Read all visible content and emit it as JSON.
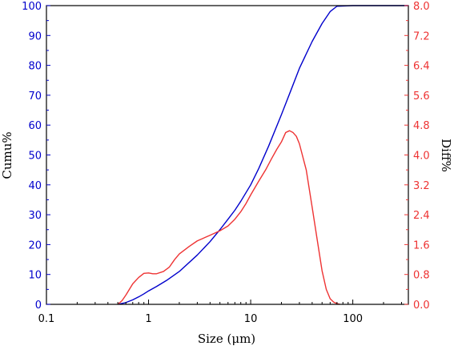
{
  "chart_data": {
    "type": "line",
    "title": "",
    "xlabel": "Size (μm)",
    "ylabel_left": "Cumu%",
    "ylabel_right": "Diff%",
    "x_scale": "log",
    "xlim": [
      0.1,
      350
    ],
    "ylim_left": [
      0,
      100
    ],
    "ylim_right": [
      0,
      8.0
    ],
    "x_ticks": [
      0.1,
      1,
      10,
      100
    ],
    "x_tick_labels": [
      "0.1",
      "1",
      "10",
      "100"
    ],
    "y_left_ticks": [
      0,
      10,
      20,
      30,
      40,
      50,
      60,
      70,
      80,
      90,
      100
    ],
    "y_left_tick_labels": [
      "0",
      "10",
      "20",
      "30",
      "40",
      "50",
      "60",
      "70",
      "80",
      "90",
      "100"
    ],
    "y_right_ticks": [
      0,
      0.8,
      1.6,
      2.4,
      3.2,
      4.0,
      4.8,
      5.6,
      6.4,
      7.2,
      8.0
    ],
    "y_right_tick_labels": [
      "0.0",
      "0.8",
      "1.6",
      "2.4",
      "3.2",
      "4.0",
      "4.8",
      "5.6",
      "6.4",
      "7.2",
      "8.0"
    ],
    "grid": false,
    "colors": {
      "cumulative": "#0000cc",
      "differential": "#ee3333",
      "left_axis": "#0000cc",
      "right_axis": "#ee3333",
      "frame": "#000000"
    },
    "series": [
      {
        "axis": "left",
        "x": [
          0.5,
          0.6,
          0.7,
          0.8,
          0.9,
          1.0,
          1.2,
          1.5,
          2.0,
          3.0,
          4.0,
          5.0,
          6.0,
          7.0,
          8.0,
          10,
          12,
          15,
          20,
          25,
          30,
          40,
          50,
          60,
          70,
          100,
          200,
          350
        ],
        "values": [
          0,
          0.6,
          1.5,
          2.5,
          3.5,
          4.5,
          6.0,
          8.0,
          11.0,
          16.5,
          21.0,
          25.0,
          28.5,
          31.5,
          34.5,
          40.0,
          45.5,
          53.0,
          63.5,
          72.0,
          79.0,
          88.0,
          94.0,
          98.0,
          99.8,
          100,
          100,
          100
        ]
      },
      {
        "axis": "right",
        "x": [
          0.5,
          0.55,
          0.6,
          0.7,
          0.8,
          0.9,
          1.0,
          1.1,
          1.2,
          1.4,
          1.6,
          1.8,
          2.0,
          2.5,
          3.0,
          4.0,
          5.0,
          6.0,
          7.0,
          8.0,
          9.0,
          10,
          12,
          14,
          16,
          18,
          20,
          22,
          24,
          26,
          28,
          30,
          35,
          40,
          45,
          50,
          55,
          60,
          65,
          70,
          75
        ],
        "values": [
          0.0,
          0.1,
          0.25,
          0.55,
          0.72,
          0.83,
          0.84,
          0.82,
          0.82,
          0.88,
          1.0,
          1.2,
          1.35,
          1.55,
          1.7,
          1.85,
          1.97,
          2.1,
          2.28,
          2.48,
          2.7,
          2.93,
          3.3,
          3.6,
          3.9,
          4.15,
          4.35,
          4.6,
          4.65,
          4.6,
          4.5,
          4.3,
          3.6,
          2.6,
          1.7,
          0.9,
          0.4,
          0.15,
          0.06,
          0.02,
          0.0
        ]
      }
    ]
  }
}
